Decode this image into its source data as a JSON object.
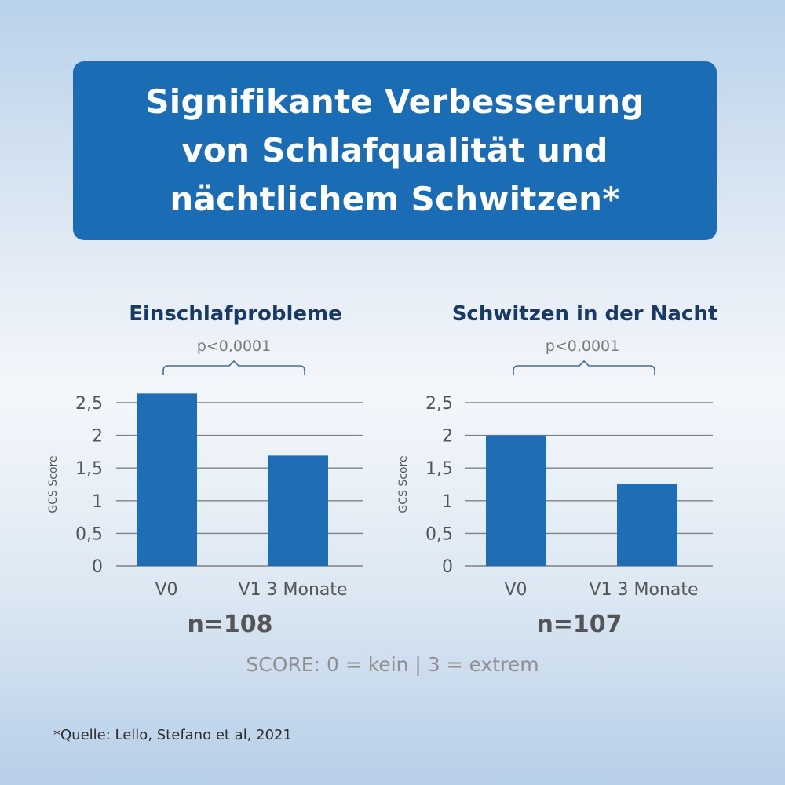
{
  "header": {
    "title_lines": [
      "Signifikante Verbesserung",
      "von Schlafqualität und",
      "nächtlichem Schwitzen*"
    ]
  },
  "colors": {
    "accent": "#1a6db5",
    "bar": "#1f6db4",
    "title_text": "#173a66",
    "grid": "#808080"
  },
  "chart_data": [
    {
      "type": "bar",
      "title": "Einschlafprobleme",
      "annotation": "p<0,0001",
      "categories": [
        "V0",
        "V1 3 Monate"
      ],
      "values": [
        2.64,
        1.69
      ],
      "ylabel": "GCS Score",
      "xlabel": "",
      "ylim": [
        0,
        2.5
      ],
      "yticks": [
        0,
        0.5,
        1,
        1.5,
        2,
        2.5
      ],
      "ytick_labels": [
        "0",
        "0,5",
        "1",
        "1,5",
        "2",
        "2,5"
      ],
      "grid": true,
      "n_label": "n=108"
    },
    {
      "type": "bar",
      "title": "Schwitzen in der Nacht",
      "annotation": "p<0,0001",
      "categories": [
        "V0",
        "V1 3 Monate"
      ],
      "values": [
        2.0,
        1.26
      ],
      "ylabel": "GCS Score",
      "xlabel": "",
      "ylim": [
        0,
        2.5
      ],
      "yticks": [
        0,
        0.5,
        1,
        1.5,
        2,
        2.5
      ],
      "ytick_labels": [
        "0",
        "0,5",
        "1",
        "1,5",
        "2",
        "2,5"
      ],
      "grid": true,
      "n_label": "n=107"
    }
  ],
  "footer": {
    "scale_note": "SCORE: 0 = kein | 3 = extrem",
    "source": "*Quelle: Lello, Stefano et al, 2021"
  }
}
